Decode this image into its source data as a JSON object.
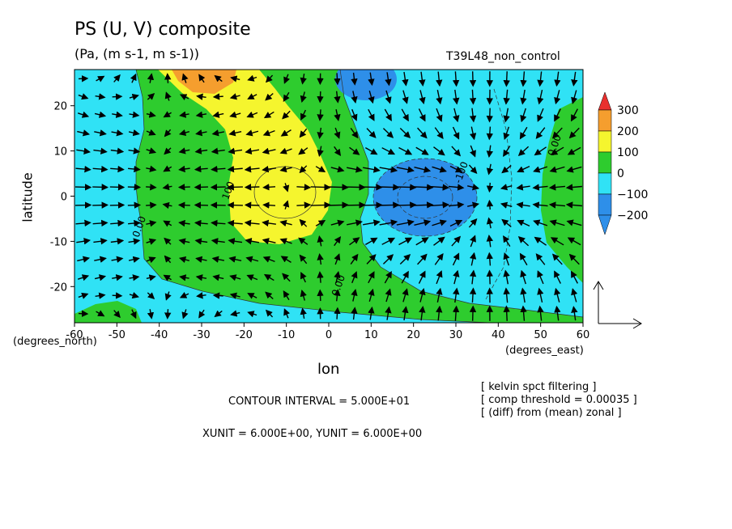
{
  "title": "PS (U, V) composite",
  "units": "(Pa, (m s-1, m s-1))",
  "run_name": "T39L48_non_control",
  "ylabel": "latitude",
  "xlabel": "lon",
  "lon_unit": "(degrees_east)",
  "lat_unit": "(degrees_north)",
  "contour_interval_text": "CONTOUR INTERVAL = 5.000E+01",
  "unit_vector_text": "XUNIT = 6.000E+00, YUNIT = 6.000E+00",
  "notes": [
    "[ kelvin spct filtering ]",
    "[ comp threshold = 0.00035 ]",
    "[ (diff) from (mean) zonal ]"
  ],
  "colors": {
    "lt_m200": "#2e8fe9",
    "m200_m100": "#2e8fe9",
    "m100_0": "#30e2f5",
    "0_100": "#2ecc2e",
    "100_200": "#f5f52e",
    "200_300": "#f59e2e",
    "gt_300": "#e9302e"
  },
  "chart_data": {
    "type": "contour-vector",
    "xlim": [
      -60,
      60
    ],
    "ylim": [
      -28,
      28
    ],
    "xticks": [
      -60,
      -50,
      -40,
      -30,
      -20,
      -10,
      0,
      10,
      20,
      30,
      40,
      50,
      60
    ],
    "yticks": [
      -20,
      -10,
      0,
      10,
      20
    ],
    "colorbar_levels": [
      "300",
      "200",
      "100",
      "0",
      "−100",
      "−200"
    ],
    "contour_labels": [
      {
        "text": "100",
        "lon": -23,
        "lat": 1
      },
      {
        "text": "0.00",
        "lon": -44,
        "lat": -7
      },
      {
        "text": "-100",
        "lon": 32,
        "lat": 5
      },
      {
        "text": "0.00",
        "lon": 3,
        "lat": -20
      },
      {
        "text": "0.00",
        "lon": 54,
        "lat": 11
      }
    ]
  }
}
